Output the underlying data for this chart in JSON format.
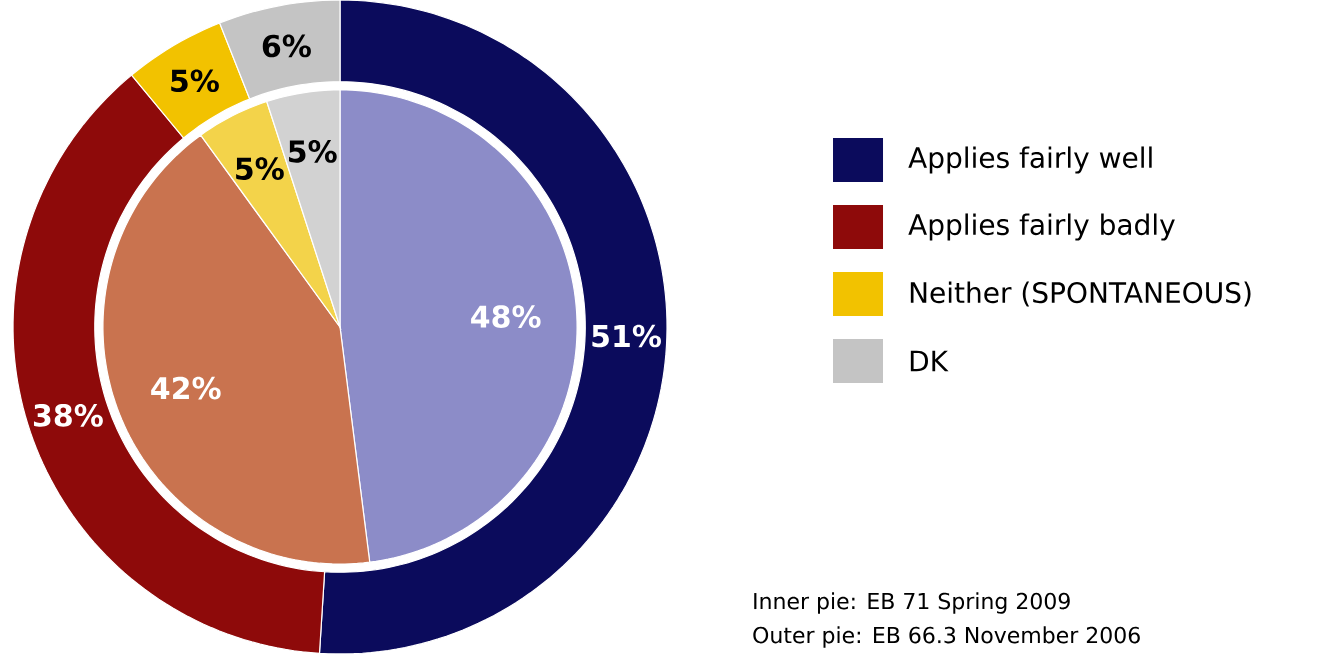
{
  "chart_data": {
    "type": "pie",
    "categories": [
      "Applies fairly well",
      "Applies fairly badly",
      "Neither (SPONTANEOUS)",
      "DK"
    ],
    "series": [
      {
        "values": [
          51,
          38,
          5,
          6
        ],
        "colors": [
          "#0b0b5c",
          "#8e0a0a",
          "#f2c200",
          "#c4c4c4"
        ],
        "value_labels": [
          "51%",
          "38%",
          "5%",
          "6%"
        ]
      },
      {
        "values": [
          48,
          42,
          5,
          5
        ],
        "colors": [
          "#8c8cc8",
          "#c9734f",
          "#f3d34a",
          "#d2d2d2"
        ],
        "value_labels": [
          "48%",
          "42%",
          "5%",
          "5%"
        ]
      }
    ],
    "legend": "right",
    "annotations": [
      "Inner pie: EB 71 Spring 2009",
      "Outer pie: EB 66.3 November 2006"
    ]
  }
}
